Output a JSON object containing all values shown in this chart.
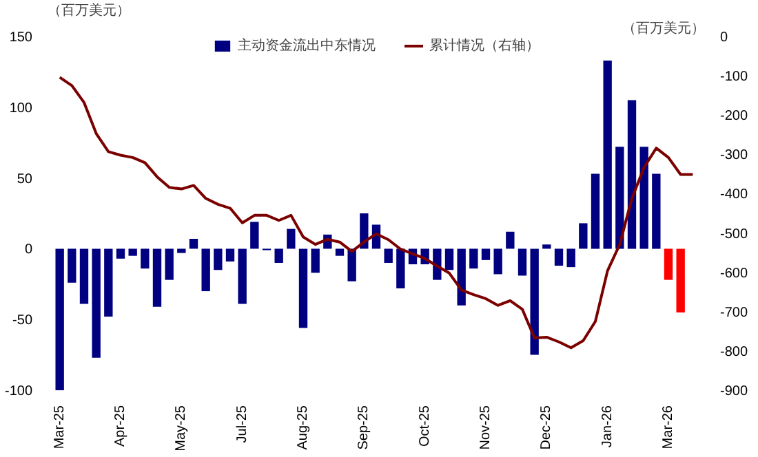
{
  "chart_data": {
    "type": "bar",
    "ylabel": "（百万美元）",
    "y2label": "（百万美元）",
    "categories": [
      "Mar-25",
      null,
      null,
      null,
      null,
      "Apr-25",
      null,
      null,
      null,
      null,
      "May-25",
      null,
      null,
      null,
      null,
      "Jul-25",
      null,
      null,
      null,
      null,
      "Aug-25",
      null,
      null,
      null,
      null,
      "Sep-25",
      null,
      null,
      null,
      null,
      "Oct-25",
      null,
      null,
      null,
      null,
      "Nov-25",
      null,
      null,
      null,
      null,
      "Dec-25",
      null,
      null,
      null,
      null,
      "Jan-26",
      null,
      null,
      null,
      null,
      "Mar-26",
      null,
      null
    ],
    "ylim": [
      -100,
      150
    ],
    "yticks": [
      -100,
      -50,
      0,
      50,
      100,
      150
    ],
    "y2lim": [
      -900,
      0
    ],
    "y2ticks": [
      -900,
      -800,
      -700,
      -600,
      -500,
      -400,
      -300,
      -200,
      -100,
      0
    ],
    "legend": "top",
    "grid": false,
    "series": [
      {
        "name": "主动资金流出中东情况",
        "colors": [
          "#000080",
          "#000080",
          "#000080",
          "#000080",
          "#000080",
          "#000080",
          "#000080",
          "#000080",
          "#000080",
          "#000080",
          "#000080",
          "#000080",
          "#000080",
          "#000080",
          "#000080",
          "#000080",
          "#000080",
          "#000080",
          "#000080",
          "#000080",
          "#000080",
          "#000080",
          "#000080",
          "#000080",
          "#000080",
          "#000080",
          "#000080",
          "#000080",
          "#000080",
          "#000080",
          "#000080",
          "#000080",
          "#000080",
          "#000080",
          "#000080",
          "#000080",
          "#000080",
          "#000080",
          "#000080",
          "#000080",
          "#000080",
          "#000080",
          "#000080",
          "#000080",
          "#000080",
          "#000080",
          "#000080",
          "#000080",
          "#000080",
          "#000080",
          "#ff0000",
          "#ff0000",
          "#ff0000"
        ],
        "values": [
          -100,
          -24,
          -39,
          -77,
          -48,
          -7,
          -5,
          -14,
          -41,
          -22,
          -3,
          7,
          -30,
          -15,
          -9,
          -39,
          19,
          -1,
          -10,
          14,
          -56,
          -17,
          10,
          -5,
          -23,
          25,
          17,
          -10,
          -28,
          -11,
          -11,
          -22,
          -15,
          -40,
          -14,
          -8,
          -18,
          12,
          -19,
          -75,
          3,
          -12,
          -13,
          18,
          53,
          133,
          72,
          105,
          72,
          53,
          -22,
          -45,
          null
        ]
      },
      {
        "name": "累计情况（右轴）",
        "type": "line",
        "axis": "y2",
        "color": "#7b0000",
        "values": [
          -104,
          -125,
          -168,
          -247,
          -293,
          -302,
          -308,
          -321,
          -357,
          -384,
          -388,
          -379,
          -412,
          -427,
          -437,
          -474,
          -455,
          -455,
          -468,
          -455,
          -510,
          -529,
          -516,
          -523,
          -547,
          -523,
          -502,
          -517,
          -541,
          -553,
          -565,
          -584,
          -602,
          -645,
          -657,
          -667,
          -684,
          -672,
          -694,
          -767,
          -765,
          -777,
          -792,
          -774,
          -725,
          -596,
          -529,
          -412,
          -333,
          -284,
          -308,
          -351,
          -351
        ]
      }
    ]
  }
}
